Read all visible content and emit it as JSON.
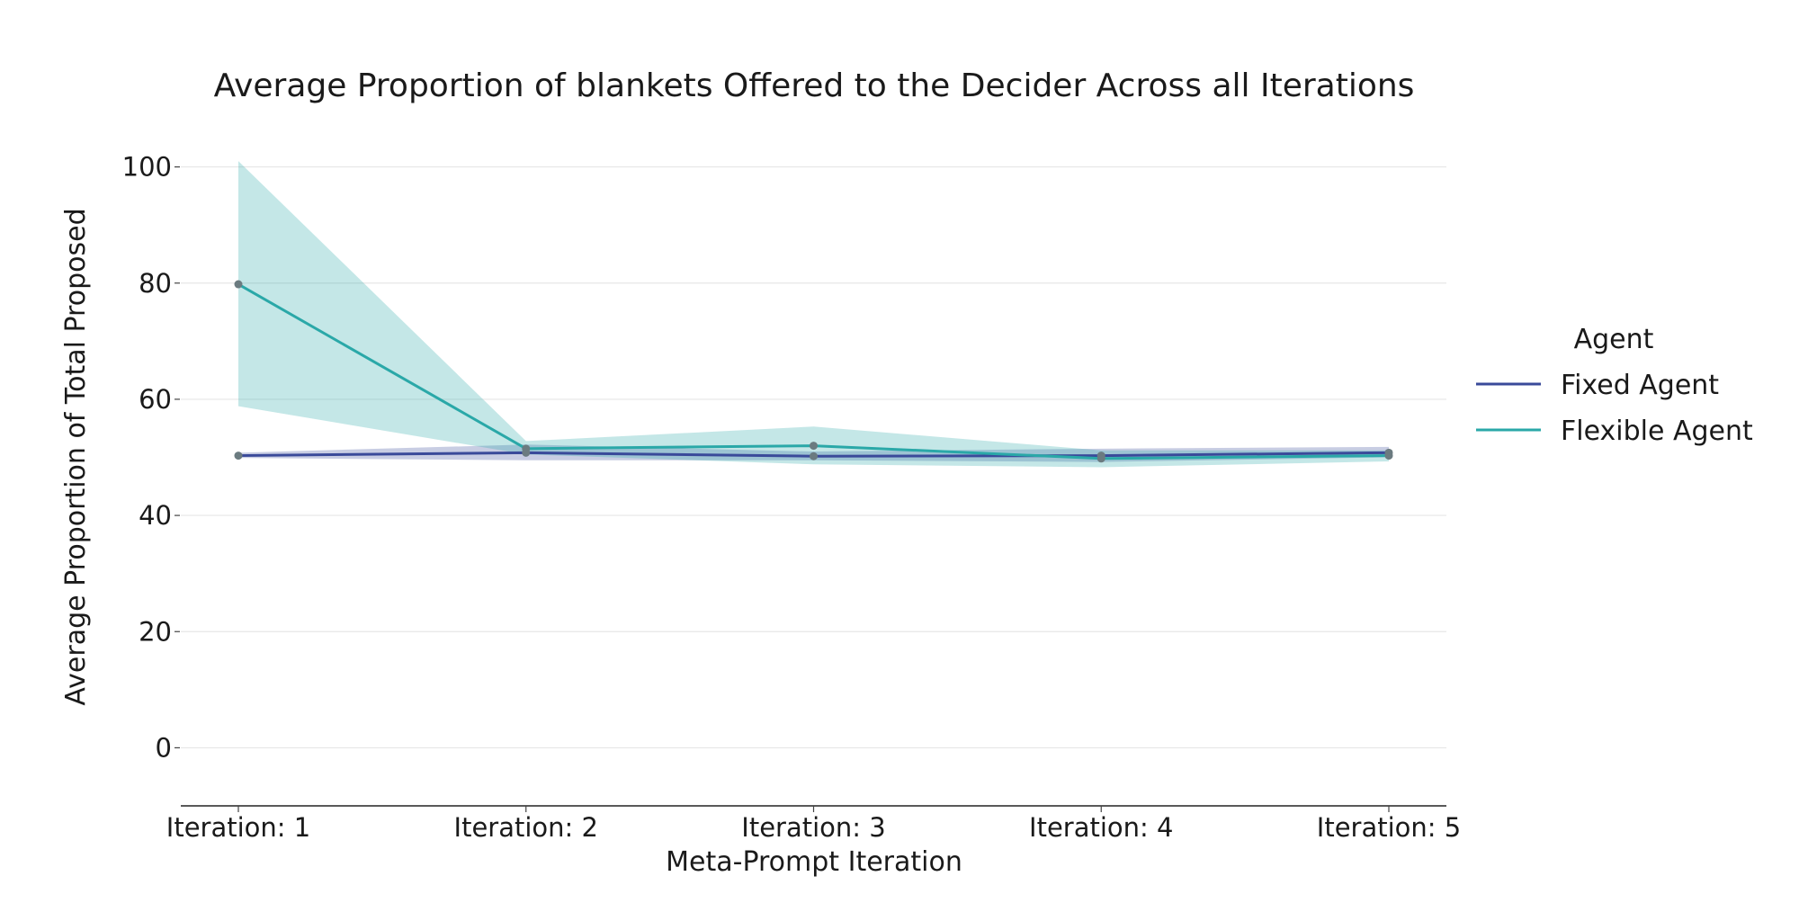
{
  "chart_data": {
    "type": "line",
    "title": "Average Proportion of blankets Offered to the Decider Across all Iterations",
    "xlabel": "Meta-Prompt Iteration",
    "ylabel": "Average Proportion of Total Proposed",
    "categories": [
      "Iteration: 1",
      "Iteration: 2",
      "Iteration: 3",
      "Iteration: 4",
      "Iteration: 5"
    ],
    "ylim": [
      -10,
      110
    ],
    "yticks": [
      "0",
      "20",
      "40",
      "60",
      "80",
      "100"
    ],
    "grid": "horizontal",
    "legend": {
      "title": "Agent",
      "placement": "right"
    },
    "series": [
      {
        "name": "Fixed Agent",
        "color": "#3a4a9a",
        "values": [
          50.3,
          50.8,
          50.2,
          50.3,
          50.8
        ],
        "ci_lower": [
          49.9,
          49.5,
          49.5,
          49.2,
          50.0
        ],
        "ci_upper": [
          50.8,
          52.2,
          51.0,
          51.5,
          51.8
        ]
      },
      {
        "name": "Flexible Agent",
        "color": "#2aa8a8",
        "values": [
          79.8,
          51.5,
          52.0,
          49.8,
          50.3
        ],
        "ci_lower": [
          58.8,
          50.5,
          48.8,
          48.3,
          49.3
        ],
        "ci_upper": [
          101.0,
          52.8,
          55.3,
          51.2,
          51.2
        ]
      }
    ]
  }
}
